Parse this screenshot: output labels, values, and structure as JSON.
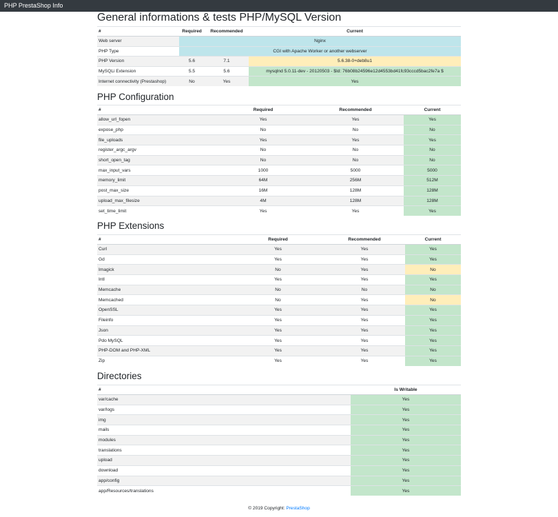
{
  "navbar": {
    "brand": "PHP PrestaShop Info"
  },
  "colors": {
    "success": "#c3e6cb",
    "info": "#bee5eb",
    "warning": "#ffeeba",
    "navbar": "#343a40",
    "link": "#007bff"
  },
  "general": {
    "title": "General informations & tests PHP/MySQL Version",
    "headers": [
      "#",
      "Required",
      "Recommended",
      "Current"
    ],
    "rows": [
      {
        "name": "Web server",
        "required": "",
        "recommended": "",
        "current": "Nginx",
        "status": "info",
        "span": true
      },
      {
        "name": "PHP Type",
        "required": "",
        "recommended": "",
        "current": "CGI with Apache Worker or another webserver",
        "status": "info",
        "span": true
      },
      {
        "name": "PHP Version",
        "required": "5.6",
        "recommended": "7.1",
        "current": "5.6.38-0+deb8u1",
        "status": "warning",
        "span": false
      },
      {
        "name": "MySQLi Extension",
        "required": "5.5",
        "recommended": "5.6",
        "current": "mysqlnd 5.0.11-dev - 20120503 - $Id: 76b08b24596e12d4553bd41fc93cccd5bac2fe7a $",
        "status": "success",
        "span": false
      },
      {
        "name": "Internet connectivity (Prestashop)",
        "required": "No",
        "recommended": "Yes",
        "current": "Yes",
        "status": "success",
        "span": false
      }
    ]
  },
  "config": {
    "title": "PHP Configuration",
    "headers": [
      "#",
      "Required",
      "Recommended",
      "Current"
    ],
    "rows": [
      {
        "name": "allow_url_fopen",
        "required": "Yes",
        "recommended": "Yes",
        "current": "Yes",
        "status": "success"
      },
      {
        "name": "expose_php",
        "required": "No",
        "recommended": "No",
        "current": "No",
        "status": "success"
      },
      {
        "name": "file_uploads",
        "required": "Yes",
        "recommended": "Yes",
        "current": "Yes",
        "status": "success"
      },
      {
        "name": "register_argc_argv",
        "required": "No",
        "recommended": "No",
        "current": "No",
        "status": "success"
      },
      {
        "name": "short_open_tag",
        "required": "No",
        "recommended": "No",
        "current": "No",
        "status": "success"
      },
      {
        "name": "max_input_vars",
        "required": "1000",
        "recommended": "5000",
        "current": "5000",
        "status": "success"
      },
      {
        "name": "memory_limit",
        "required": "64M",
        "recommended": "256M",
        "current": "512M",
        "status": "success"
      },
      {
        "name": "post_max_size",
        "required": "16M",
        "recommended": "128M",
        "current": "128M",
        "status": "success"
      },
      {
        "name": "upload_max_filesize",
        "required": "4M",
        "recommended": "128M",
        "current": "128M",
        "status": "success"
      },
      {
        "name": "set_time_limit",
        "required": "Yes",
        "recommended": "Yes",
        "current": "Yes",
        "status": "success"
      }
    ]
  },
  "extensions": {
    "title": "PHP Extensions",
    "headers": [
      "#",
      "Required",
      "Recommended",
      "Current"
    ],
    "rows": [
      {
        "name": "Curl",
        "required": "Yes",
        "recommended": "Yes",
        "current": "Yes",
        "status": "success"
      },
      {
        "name": "Gd",
        "required": "Yes",
        "recommended": "Yes",
        "current": "Yes",
        "status": "success"
      },
      {
        "name": "Imagick",
        "required": "No",
        "recommended": "Yes",
        "current": "No",
        "status": "warning"
      },
      {
        "name": "Intl",
        "required": "Yes",
        "recommended": "Yes",
        "current": "Yes",
        "status": "success"
      },
      {
        "name": "Memcache",
        "required": "No",
        "recommended": "No",
        "current": "No",
        "status": "success"
      },
      {
        "name": "Memcached",
        "required": "No",
        "recommended": "Yes",
        "current": "No",
        "status": "warning"
      },
      {
        "name": "OpenSSL",
        "required": "Yes",
        "recommended": "Yes",
        "current": "Yes",
        "status": "success"
      },
      {
        "name": "Fileinfo",
        "required": "Yes",
        "recommended": "Yes",
        "current": "Yes",
        "status": "success"
      },
      {
        "name": "Json",
        "required": "Yes",
        "recommended": "Yes",
        "current": "Yes",
        "status": "success"
      },
      {
        "name": "Pdo MySQL",
        "required": "Yes",
        "recommended": "Yes",
        "current": "Yes",
        "status": "success"
      },
      {
        "name": "PHP-DOM and PHP-XML",
        "required": "Yes",
        "recommended": "Yes",
        "current": "Yes",
        "status": "success"
      },
      {
        "name": "Zip",
        "required": "Yes",
        "recommended": "Yes",
        "current": "Yes",
        "status": "success"
      }
    ]
  },
  "directories": {
    "title": "Directories",
    "headers": [
      "#",
      "Is Writable"
    ],
    "rows": [
      {
        "name": "var/cache",
        "writable": "Yes",
        "status": "success"
      },
      {
        "name": "var/logs",
        "writable": "Yes",
        "status": "success"
      },
      {
        "name": "img",
        "writable": "Yes",
        "status": "success"
      },
      {
        "name": "mails",
        "writable": "Yes",
        "status": "success"
      },
      {
        "name": "modules",
        "writable": "Yes",
        "status": "success"
      },
      {
        "name": "translations",
        "writable": "Yes",
        "status": "success"
      },
      {
        "name": "upload",
        "writable": "Yes",
        "status": "success"
      },
      {
        "name": "download",
        "writable": "Yes",
        "status": "success"
      },
      {
        "name": "app/config",
        "writable": "Yes",
        "status": "success"
      },
      {
        "name": "app/Resources/translations",
        "writable": "Yes",
        "status": "success"
      }
    ]
  },
  "footer": {
    "copyright": "© 2019 Copyright:",
    "link_label": "PrestaShop"
  }
}
